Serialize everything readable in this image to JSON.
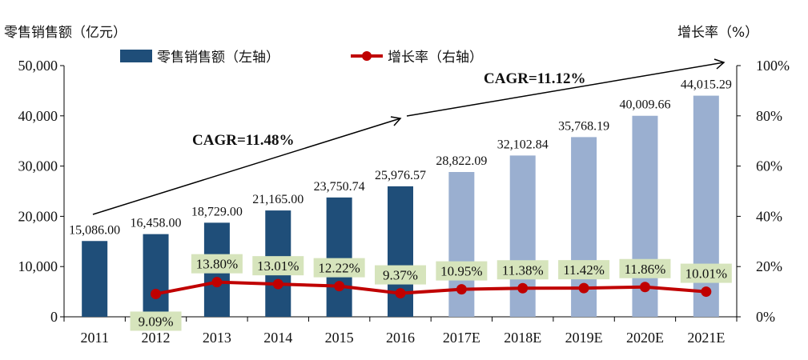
{
  "chart_data": {
    "type": "bar",
    "left_axis_title": "零售销售额（亿元）",
    "right_axis_title": "增长率（%）",
    "categories": [
      "2011",
      "2012",
      "2013",
      "2014",
      "2015",
      "2016",
      "2017E",
      "2018E",
      "2019E",
      "2020E",
      "2021E"
    ],
    "series": [
      {
        "name": "零售销售额（左轴）",
        "type": "bar",
        "axis": "left",
        "values": [
          15086.0,
          16458.0,
          18729.0,
          21165.0,
          23750.74,
          25976.57,
          28822.09,
          32102.84,
          35768.19,
          40009.66,
          44015.29
        ],
        "labels": [
          "15,086.00",
          "16,458.00",
          "18,729.00",
          "21,165.00",
          "23,750.74",
          "25,976.57",
          "28,822.09",
          "32,102.84",
          "35,768.19",
          "40,009.66",
          "44,015.29"
        ]
      },
      {
        "name": "增长率（右轴）",
        "type": "line",
        "axis": "right",
        "values": [
          null,
          9.09,
          13.8,
          13.01,
          12.22,
          9.37,
          10.95,
          11.38,
          11.42,
          11.86,
          10.01
        ],
        "labels": [
          "",
          "9.09%",
          "13.80%",
          "13.01%",
          "12.22%",
          "9.37%",
          "10.95%",
          "11.38%",
          "11.42%",
          "11.86%",
          "10.01%"
        ]
      }
    ],
    "left_axis": {
      "min": 0,
      "max": 50000,
      "ticks": [
        "0",
        "10,000",
        "20,000",
        "30,000",
        "40,000",
        "50,000"
      ]
    },
    "right_axis": {
      "min": 0,
      "max": 100,
      "ticks": [
        "0%",
        "20%",
        "40%",
        "60%",
        "80%",
        "100%"
      ]
    },
    "annotations": [
      "CAGR=11.48%",
      "CAGR=11.12%"
    ],
    "legend_position": "top",
    "grid": false,
    "colors": {
      "actual_bar": "#1f4e79",
      "forecast_bar": "#9aafd0",
      "line": "#c00000",
      "label_bg": "#d6e4bc",
      "axis": "#000000"
    }
  }
}
